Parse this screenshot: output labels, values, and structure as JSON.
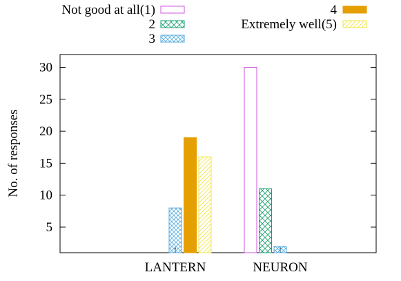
{
  "chart_data": {
    "type": "bar",
    "title": "",
    "xlabel": "",
    "ylabel": "No. of responses",
    "categories": [
      "LANTERN",
      "NEURON"
    ],
    "ylim": [
      1,
      32
    ],
    "yticks": [
      5,
      10,
      15,
      20,
      25,
      30
    ],
    "grid": false,
    "legend_position": "top",
    "series": [
      {
        "name": "Not good at all(1)",
        "values": [
          0,
          30
        ],
        "color": "#cc55dd",
        "pattern": "outline"
      },
      {
        "name": "2",
        "values": [
          0,
          11
        ],
        "color": "#1a9e74",
        "pattern": "crosshatch"
      },
      {
        "name": "3",
        "values": [
          8,
          2
        ],
        "color": "#55aadd",
        "pattern": "crosshatch"
      },
      {
        "name": "4",
        "values": [
          19,
          0
        ],
        "color": "#e69f00",
        "pattern": "solid"
      },
      {
        "name": "Extremely well(5)",
        "values": [
          16,
          0
        ],
        "color": "#f0e442",
        "pattern": "diagonal"
      }
    ]
  }
}
